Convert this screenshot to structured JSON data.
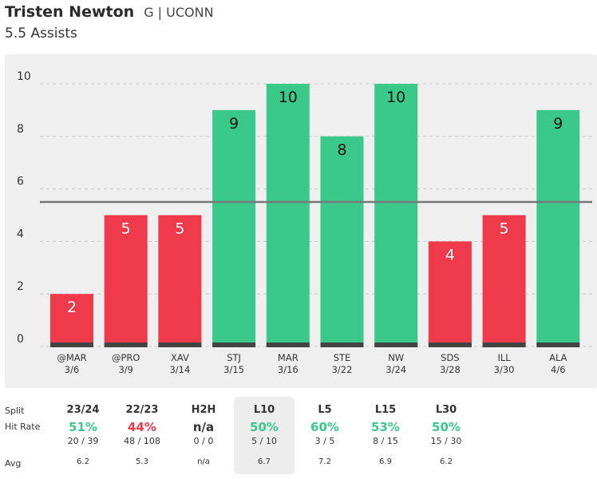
{
  "header": {
    "player_name": "Tristen Newton",
    "team": "G | UCONN",
    "prop_line": "5.5 Assists"
  },
  "colors": {
    "over": "#3ac98a",
    "under": "#ee3a4a",
    "base": "#444444",
    "line": "#777777"
  },
  "chart_data": {
    "type": "bar",
    "title": "",
    "categories": [
      "@MAR",
      "@PRO",
      "XAV",
      "STJ",
      "MAR",
      "STE",
      "NW",
      "SDS",
      "ILL",
      "ALA"
    ],
    "dates": [
      "3/6",
      "3/9",
      "3/14",
      "3/15",
      "3/16",
      "3/22",
      "3/24",
      "3/28",
      "3/30",
      "4/6"
    ],
    "values": [
      2,
      5,
      5,
      9,
      10,
      8,
      10,
      4,
      5,
      9
    ],
    "threshold": 5.5,
    "ylim": [
      0,
      10
    ],
    "yticks": [
      0,
      2,
      4,
      6,
      8,
      10
    ],
    "xlabel": "",
    "ylabel": ""
  },
  "stats": {
    "labels": {
      "split": "Split",
      "hit_rate": "Hit Rate",
      "avg": "Avg"
    },
    "columns": [
      {
        "name": "23/24",
        "rate": "51%",
        "fraction": "20 / 39",
        "avg": "6.2",
        "status": "over"
      },
      {
        "name": "22/23",
        "rate": "44%",
        "fraction": "48 / 108",
        "avg": "5.3",
        "status": "under"
      },
      {
        "name": "H2H",
        "rate": "n/a",
        "fraction": "0 / 0",
        "avg": "n/a",
        "status": "neutral"
      },
      {
        "name": "L10",
        "rate": "50%",
        "fraction": "5 / 10",
        "avg": "6.7",
        "status": "over",
        "selected": true
      },
      {
        "name": "L5",
        "rate": "60%",
        "fraction": "3 / 5",
        "avg": "7.2",
        "status": "over"
      },
      {
        "name": "L15",
        "rate": "53%",
        "fraction": "8 / 15",
        "avg": "6.9",
        "status": "over"
      },
      {
        "name": "L30",
        "rate": "50%",
        "fraction": "15 / 30",
        "avg": "6.2",
        "status": "over"
      }
    ]
  }
}
